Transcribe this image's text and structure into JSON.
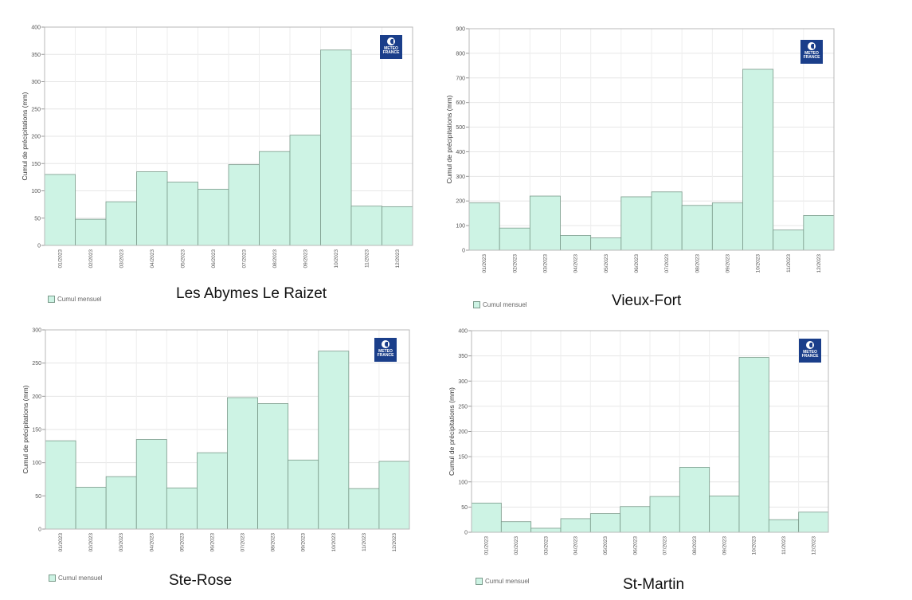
{
  "brand": {
    "logo_text": "METEO FRANCE",
    "bar_fill": "#cdf3e4",
    "bar_stroke": "#7a9a8a"
  },
  "chart_data": [
    {
      "type": "bar",
      "station": "Les Abymes Le Raizet",
      "categories": [
        "01/2023",
        "02/2023",
        "03/2023",
        "04/2023",
        "05/2023",
        "06/2023",
        "07/2023",
        "08/2023",
        "09/2023",
        "10/2023",
        "11/2023",
        "12/2023"
      ],
      "series": [
        {
          "name": "Cumul mensuel",
          "values": [
            130,
            48,
            80,
            135,
            116,
            103,
            148,
            172,
            202,
            358,
            72,
            71
          ]
        }
      ],
      "ylabel": "Cumul de précipitations (mm)",
      "ylim": [
        0,
        400
      ],
      "yticks": [
        0,
        50,
        100,
        150,
        200,
        250,
        300,
        350,
        400
      ],
      "grid": true,
      "legend_position": "bottom-left"
    },
    {
      "type": "bar",
      "station": "Vieux-Fort",
      "categories": [
        "01/2023",
        "02/2023",
        "03/2023",
        "04/2023",
        "05/2023",
        "06/2023",
        "07/2023",
        "08/2023",
        "09/2023",
        "10/2023",
        "11/2023",
        "12/2023"
      ],
      "series": [
        {
          "name": "Cumul mensuel",
          "values": [
            192,
            90,
            220,
            60,
            50,
            217,
            237,
            182,
            192,
            735,
            82,
            141
          ]
        }
      ],
      "ylabel": "Cumul de précipitations (mm)",
      "ylim": [
        0,
        900
      ],
      "yticks": [
        0,
        100,
        200,
        300,
        400,
        500,
        600,
        700,
        800,
        900
      ],
      "grid": true,
      "legend_position": "bottom-left"
    },
    {
      "type": "bar",
      "station": "Ste-Rose",
      "categories": [
        "01/2023",
        "02/2023",
        "03/2023",
        "04/2023",
        "05/2023",
        "06/2023",
        "07/2023",
        "08/2023",
        "09/2023",
        "10/2023",
        "11/2023",
        "12/2023"
      ],
      "series": [
        {
          "name": "Cumul mensuel",
          "values": [
            133,
            63,
            79,
            135,
            62,
            115,
            198,
            189,
            104,
            268,
            61,
            102
          ]
        }
      ],
      "ylabel": "Cumul de précipitations (mm)",
      "ylim": [
        0,
        300
      ],
      "yticks": [
        0,
        50,
        100,
        150,
        200,
        250,
        300
      ],
      "grid": true,
      "legend_position": "bottom-left"
    },
    {
      "type": "bar",
      "station": "St-Martin",
      "categories": [
        "01/2023",
        "02/2023",
        "03/2023",
        "04/2023",
        "05/2023",
        "06/2023",
        "07/2023",
        "08/2023",
        "09/2023",
        "10/2023",
        "11/2023",
        "12/2023"
      ],
      "series": [
        {
          "name": "Cumul mensuel",
          "values": [
            58,
            21,
            8,
            27,
            37,
            51,
            71,
            129,
            72,
            347,
            25,
            40
          ]
        }
      ],
      "ylabel": "Cumul de précipitations (mm)",
      "ylim": [
        0,
        400
      ],
      "yticks": [
        0,
        50,
        100,
        150,
        200,
        250,
        300,
        350,
        400
      ],
      "grid": true,
      "legend_position": "bottom-left"
    }
  ]
}
